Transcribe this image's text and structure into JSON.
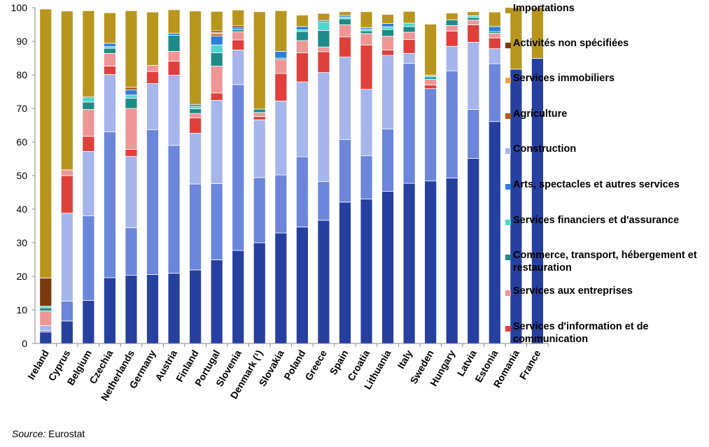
{
  "chart_data": {
    "type": "stacked-bar",
    "y_axis": {
      "min": 0,
      "max": 100,
      "ticks": [
        0,
        10,
        20,
        30,
        40,
        50,
        60,
        70,
        80,
        90,
        100
      ]
    },
    "grid": false,
    "legend_placement": "right",
    "categories": [
      "Ireland",
      "Cyprus",
      "Belgium",
      "Czechia",
      "Netherlands",
      "Germany",
      "Austria",
      "Finland",
      "Portugal",
      "Slovenia",
      "Denmark (¹)",
      "Slovakia",
      "Poland",
      "Greece",
      "Spain",
      "Croatia",
      "Lithuania",
      "Italy",
      "Sweden",
      "Hungary",
      "Latvia",
      "Estonia",
      "Romania",
      "France"
    ],
    "series": [
      {
        "name": "",
        "color": "#2640A0",
        "values": [
          3.4,
          6.7,
          12.8,
          19.6,
          20.3,
          20.5,
          20.9,
          21.9,
          24.9,
          27.7,
          30.0,
          32.9,
          34.7,
          36.7,
          42.1,
          43.0,
          45.3,
          47.7,
          48.4,
          49.3,
          55.1,
          66.1,
          81.7,
          84.9
        ]
      },
      {
        "name": "",
        "color": "#6B86DA",
        "values": [
          0.5,
          5.9,
          25.2,
          43.4,
          14.2,
          43.2,
          38.1,
          25.6,
          22.7,
          49.4,
          19.4,
          17.3,
          20.9,
          11.5,
          18.6,
          12.9,
          18.6,
          35.7,
          27.5,
          31.9,
          14.6,
          17.2,
          0,
          0
        ]
      },
      {
        "name": "Construction",
        "color": "#A6B6EC",
        "values": [
          1.4,
          26.2,
          19.2,
          17.1,
          21.2,
          13.7,
          20.9,
          15.1,
          24.8,
          10.3,
          17.2,
          22.0,
          22.3,
          32.5,
          24.6,
          19.8,
          21.9,
          3.0,
          0,
          7.3,
          20.0,
          4.5,
          0,
          0
        ]
      },
      {
        "name": "Services d'information et de communication",
        "color": "#E0403C",
        "values": [
          0,
          11.2,
          4.5,
          2.5,
          2.1,
          3.6,
          4.2,
          4.6,
          2.2,
          3.0,
          1.0,
          8.2,
          8.7,
          6.2,
          6.0,
          13.2,
          1.6,
          4.1,
          1.1,
          4.5,
          5.2,
          3.2,
          0,
          0
        ]
      },
      {
        "name": "Services aux entreprises",
        "color": "#EE9696",
        "values": [
          4.4,
          1.7,
          8.0,
          3.8,
          12.2,
          1.8,
          2.9,
          1.3,
          8.0,
          2.4,
          1.2,
          4.2,
          3.6,
          1.4,
          3.6,
          3.4,
          4.1,
          2.2,
          1.7,
          1.7,
          1.4,
          1.4,
          0,
          0
        ]
      },
      {
        "name": "Commerce, transport, hébergement et restauration",
        "color": "#1F8A87",
        "values": [
          0.9,
          0,
          2.2,
          1.5,
          3.0,
          0,
          4.8,
          1.4,
          4.0,
          0.6,
          1.0,
          0.4,
          2.7,
          4.9,
          1.8,
          0.8,
          2.0,
          1.7,
          0.7,
          1.7,
          0.8,
          0.5,
          0,
          0
        ]
      },
      {
        "name": "Services financiers et d'assurance",
        "color": "#4FD6CE",
        "values": [
          0.5,
          0,
          1.5,
          0.5,
          1.0,
          0,
          0,
          0.7,
          2.3,
          0,
          0,
          0,
          0.5,
          2.5,
          0.5,
          0.5,
          0.8,
          1.0,
          0.5,
          0,
          0.5,
          0,
          0,
          0
        ]
      },
      {
        "name": "Arts, spectacles et autres services",
        "color": "#2E7FDC",
        "values": [
          0,
          0,
          0,
          1.0,
          1.5,
          0,
          0.6,
          0.6,
          2.7,
          0.6,
          0,
          2.0,
          1.0,
          0.5,
          0.5,
          0.5,
          1.0,
          0,
          0,
          0,
          0,
          1.5,
          0,
          0
        ]
      },
      {
        "name": "Agriculture",
        "color": "#B35A10",
        "values": [
          0,
          0,
          0,
          0,
          0.8,
          0,
          0,
          0,
          0.6,
          0,
          0,
          0,
          0,
          0,
          0,
          0,
          0,
          0,
          0,
          0,
          0,
          0,
          0,
          0
        ]
      },
      {
        "name": "Services immobiliers",
        "color": "#F5A040",
        "values": [
          0,
          0,
          0,
          0,
          0,
          0,
          0,
          0,
          0.4,
          0,
          0,
          0,
          0,
          0,
          0,
          0,
          0,
          0,
          0,
          0,
          0,
          0,
          0,
          0
        ]
      },
      {
        "name": "Activités non spécifiées",
        "color": "#7A3A0C",
        "values": [
          8.4,
          0,
          0,
          0,
          0,
          0,
          0,
          0,
          0.5,
          0.6,
          0,
          0,
          0,
          0,
          0,
          0,
          0,
          0,
          0,
          0,
          0,
          0,
          0,
          0
        ]
      },
      {
        "name": "Importations",
        "color": "#B8961E",
        "values": [
          80.1,
          47.3,
          25.7,
          9.1,
          22.8,
          15.9,
          7.0,
          27.8,
          5.8,
          4.7,
          29.0,
          12.1,
          3.4,
          2.1,
          1.1,
          4.7,
          2.7,
          3.5,
          15.2,
          2.0,
          1.2,
          4.3,
          18.3,
          15.1
        ]
      }
    ],
    "legend": [
      {
        "label": "Importations",
        "color": "#B8961E"
      },
      {
        "label": "Activités non spécifiées",
        "color": "#7A3A0C"
      },
      {
        "label": "Services immobiliers",
        "color": "#F5A040"
      },
      {
        "label": "Agriculture",
        "color": "#B35A10"
      },
      {
        "label": "Construction",
        "color": "#A6B6EC"
      },
      {
        "label": "Arts, spectacles et autres services",
        "color": "#2E7FDC"
      },
      {
        "label": "Services financiers et d'assurance",
        "color": "#4FD6CE"
      },
      {
        "label": "Commerce, transport, hébergement et restauration",
        "color": "#1F8A87"
      },
      {
        "label": "Services aux entreprises",
        "color": "#EE9696"
      },
      {
        "label": "Services d'information et de communication",
        "color": "#E0403C"
      }
    ]
  },
  "source": {
    "label": "Source:",
    "text": " Eurostat"
  }
}
